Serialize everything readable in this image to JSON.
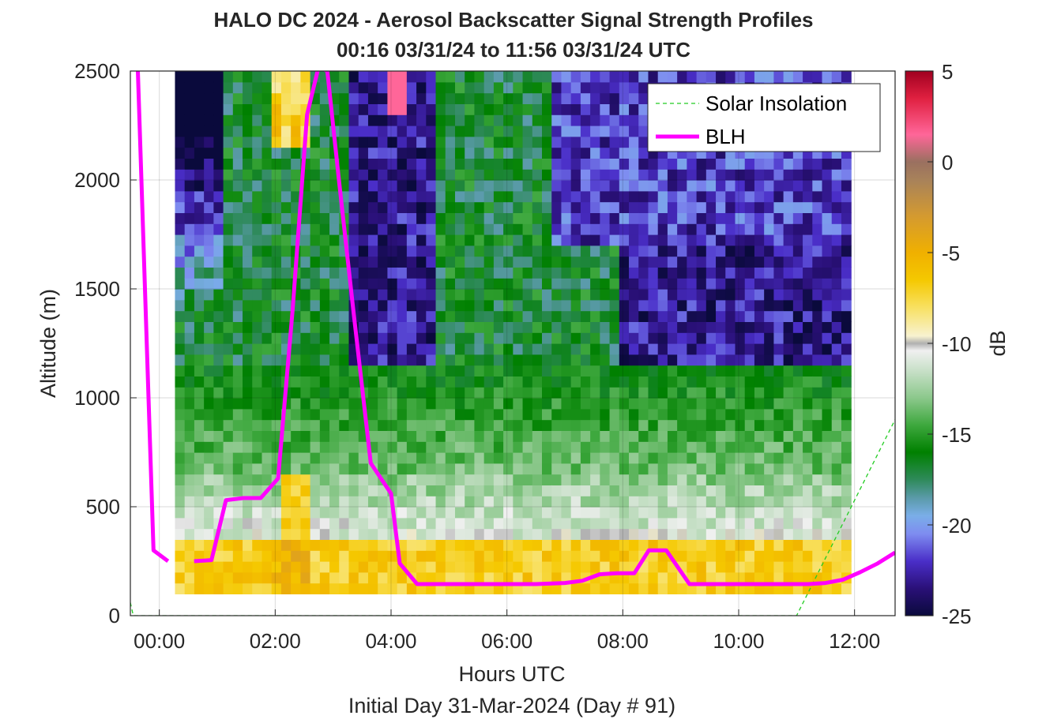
{
  "chart_data": {
    "type": "heatmap",
    "title": "HALO DC 2024 - Aerosol Backscatter Signal Strength Profiles",
    "subtitle": "00:16 03/31/24 to 11:56 03/31/24  UTC",
    "xlabel": "Hours UTC",
    "xlabel2": "Initial Day 31-Mar-2024 (Day # 91)",
    "ylabel": "Altitude (m)",
    "colorbar_label": "dB",
    "xlim": [
      -0.5,
      12.7
    ],
    "ylim": [
      0,
      2500
    ],
    "x_ticks": [
      0,
      2,
      4,
      6,
      8,
      10,
      12
    ],
    "x_tick_labels": [
      "00:00",
      "02:00",
      "04:00",
      "06:00",
      "08:00",
      "10:00",
      "12:00"
    ],
    "y_ticks": [
      0,
      500,
      1000,
      1500,
      2000,
      2500
    ],
    "y_tick_labels": [
      "0",
      "500",
      "1000",
      "1500",
      "2000",
      "2500"
    ],
    "clim": [
      -25,
      5
    ],
    "c_ticks": [
      -25,
      -20,
      -15,
      -10,
      -5,
      0,
      5
    ],
    "c_tick_labels": [
      "-25",
      "-20",
      "-15",
      "-10",
      "-5",
      "0",
      "5"
    ],
    "grid": true,
    "legend_position": "top-right",
    "colormap_stops": [
      {
        "v": -25,
        "color": "#0a0a3c"
      },
      {
        "v": -23.5,
        "color": "#2a1078"
      },
      {
        "v": -22,
        "color": "#4a2ec8"
      },
      {
        "v": -20.5,
        "color": "#7e8cf0"
      },
      {
        "v": -19.5,
        "color": "#7aaee8"
      },
      {
        "v": -18.5,
        "color": "#5a9aa8"
      },
      {
        "v": -17.5,
        "color": "#2e8a5a"
      },
      {
        "v": -16,
        "color": "#008000"
      },
      {
        "v": -14.5,
        "color": "#3ea83e"
      },
      {
        "v": -13,
        "color": "#8cc88c"
      },
      {
        "v": -11.5,
        "color": "#c8e0c8"
      },
      {
        "v": -10.4,
        "color": "#f0f0f0"
      },
      {
        "v": -10,
        "color": "#b0b0b0"
      },
      {
        "v": -9.6,
        "color": "#f8f2d0"
      },
      {
        "v": -8,
        "color": "#f8e060"
      },
      {
        "v": -6.5,
        "color": "#f5c800"
      },
      {
        "v": -5,
        "color": "#f0b000"
      },
      {
        "v": -3,
        "color": "#d49a30"
      },
      {
        "v": -1,
        "color": "#a8825a"
      },
      {
        "v": 0,
        "color": "#9a7060"
      },
      {
        "v": 1.5,
        "color": "#ff6699"
      },
      {
        "v": 3.5,
        "color": "#e02040"
      },
      {
        "v": 5,
        "color": "#a00020"
      }
    ],
    "heatmap": {
      "x_start": 0.27,
      "dx": 0.1667,
      "y_start": 100,
      "dy": 50,
      "rows": 48,
      "cols": 70
    },
    "series": [
      {
        "name": "Solar Insolation",
        "style": "dashed",
        "color": "#22cc22",
        "x": [
          -0.5,
          -0.45,
          11.0,
          12.7
        ],
        "y": [
          60,
          0,
          0,
          900
        ]
      },
      {
        "name": "BLH",
        "style": "solid",
        "color": "#ff00ff",
        "segments": [
          {
            "x": [
              -0.37,
              -0.1,
              0.15
            ],
            "y": [
              2500,
              300,
              250
            ]
          },
          {
            "x": [
              0.6,
              0.9,
              1.15,
              1.45,
              1.75,
              2.05,
              2.3,
              2.55,
              2.75,
              2.9,
              3.1,
              3.35,
              3.65,
              4.0,
              4.15,
              4.45,
              4.8,
              5.2,
              5.6,
              6.0,
              6.5,
              7.0,
              7.3,
              7.6,
              7.9,
              8.2,
              8.45,
              8.75,
              9.15,
              9.6,
              10.0,
              10.4,
              10.8,
              11.2,
              11.5,
              11.8,
              12.1,
              12.4,
              12.7
            ],
            "y": [
              250,
              255,
              530,
              540,
              540,
              630,
              1400,
              2300,
              2520,
              2500,
              2000,
              1400,
              700,
              560,
              240,
              145,
              145,
              145,
              145,
              145,
              145,
              150,
              160,
              190,
              195,
              195,
              300,
              300,
              145,
              145,
              145,
              145,
              145,
              145,
              150,
              165,
              200,
              240,
              290
            ]
          }
        ]
      }
    ]
  }
}
